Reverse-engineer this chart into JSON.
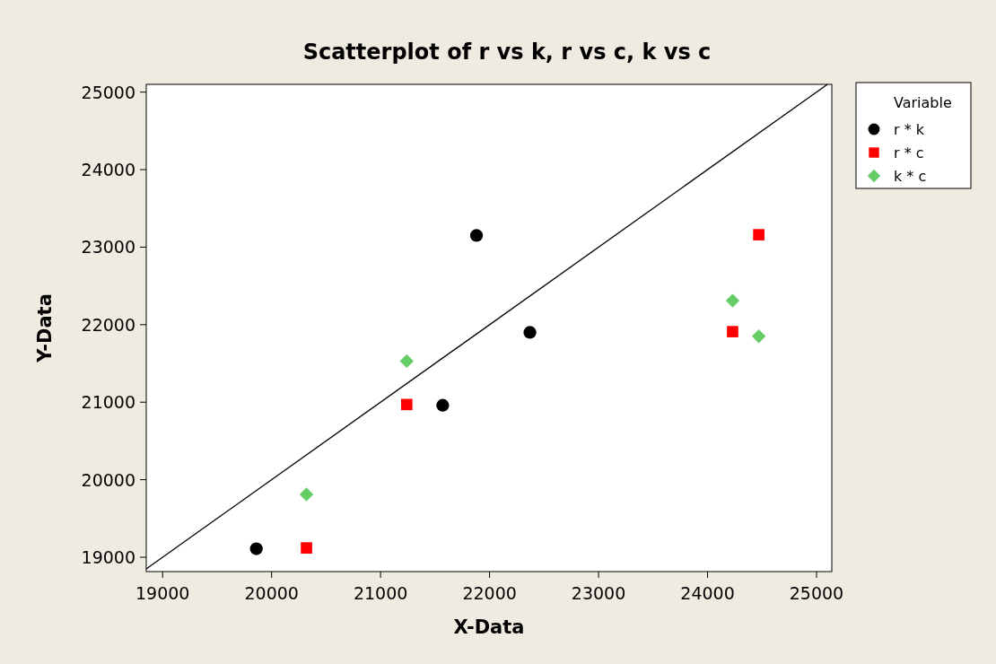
{
  "chart_data": {
    "type": "scatter",
    "title": "Scatterplot of r vs k, r vs c, k vs c",
    "xlabel": "X-Data",
    "ylabel": "Y-Data",
    "legend_title": "Variable",
    "legend": "top right",
    "grid": false,
    "xlim": [
      18850,
      25140
    ],
    "xticks": [
      19000,
      20000,
      21000,
      22000,
      23000,
      24000,
      25000
    ],
    "ylim": [
      18815,
      25100
    ],
    "yticks": [
      19000,
      20000,
      21000,
      22000,
      23000,
      24000,
      25000
    ],
    "series": [
      {
        "name": "r * k",
        "color": "#000000",
        "marker": "circle",
        "x": [
          19860,
          21570,
          21880,
          22370
        ],
        "values": [
          19110,
          20960,
          23150,
          21900
        ]
      },
      {
        "name": "r * c",
        "color": "#ff0000",
        "marker": "square",
        "x": [
          20320,
          21240,
          24470,
          24230
        ],
        "values": [
          19120,
          20970,
          23160,
          21910
        ]
      },
      {
        "name": "k * c",
        "color": "#66cc66",
        "marker": "diamond",
        "x": [
          20320,
          21240,
          24230,
          24470
        ],
        "values": [
          19810,
          21530,
          22310,
          21850
        ]
      },
      {
        "type": "line",
        "color": "#000000",
        "x": [
          18850,
          25100
        ],
        "values": [
          18850,
          25100
        ]
      }
    ]
  }
}
